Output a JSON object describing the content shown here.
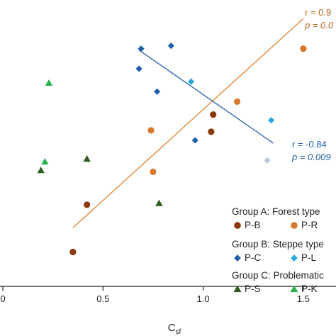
{
  "chart_data": {
    "type": "scatter",
    "xlabel": "C",
    "xlabel_sub": "sf",
    "xlim": [
      0.0,
      1.55
    ],
    "ylim": [
      0.0,
      1.0
    ],
    "x_ticks": [
      {
        "value": 0.0,
        "label": "0"
      },
      {
        "value": 0.5,
        "label": "0.5"
      },
      {
        "value": 1.0,
        "label": "1.0"
      },
      {
        "value": 1.5,
        "label": "1.5"
      }
    ],
    "grid": false,
    "legend": {
      "placement": "bottom-right",
      "groups": [
        {
          "title": "Group A: Forest type",
          "entries": [
            "P-B",
            "P-R"
          ]
        },
        {
          "title": "Group B: Steppe type",
          "entries": [
            "P-C",
            "P-L"
          ]
        },
        {
          "title": "Group C: Problematic",
          "entries": [
            "P-S",
            "P-K"
          ]
        }
      ]
    },
    "colors": {
      "P-B": "#8b3a0f",
      "P-R": "#d9772b",
      "P-C": "#1f5fa8",
      "P-L": "#29a9e0",
      "P-S": "#2e5c1e",
      "P-K": "#27b34a",
      "forest_fit": "#e08a3c",
      "steppe_fit": "#2d68b0",
      "forest_stat": "#b8661d",
      "steppe_stat": "#1f5fa8"
    },
    "annotations": [
      {
        "id": "forest",
        "lines": [
          "r = 0.9",
          "p = 0.0"
        ]
      },
      {
        "id": "steppe",
        "lines": [
          "r = -0.84",
          "p = 0.009"
        ]
      }
    ],
    "fit_lines": [
      {
        "id": "forest",
        "x": [
          0.35,
          1.5
        ],
        "y": [
          0.205,
          0.935
        ]
      },
      {
        "id": "steppe",
        "x": [
          0.68,
          1.35
        ],
        "y": [
          0.825,
          0.5
        ]
      }
    ],
    "series": [
      {
        "name": "P-B",
        "marker": "circle",
        "x": [
          0.35,
          0.42,
          1.04,
          1.05
        ],
        "y": [
          0.12,
          0.285,
          0.54,
          0.6
        ]
      },
      {
        "name": "P-R",
        "marker": "circle",
        "x": [
          0.74,
          0.75,
          1.17,
          1.5
        ],
        "y": [
          0.545,
          0.4,
          0.645,
          0.83
        ]
      },
      {
        "name": "P-C",
        "marker": "diamond",
        "x": [
          0.68,
          0.69,
          0.77,
          0.84,
          0.96
        ],
        "y": [
          0.76,
          0.83,
          0.68,
          0.84,
          0.51
        ]
      },
      {
        "name": "P-L",
        "marker": "diamond",
        "x": [
          0.94,
          1.34
        ],
        "y": [
          0.715,
          0.58
        ]
      },
      {
        "name": "P-S",
        "marker": "triangle",
        "x": [
          0.19,
          0.42,
          0.78
        ],
        "y": [
          0.405,
          0.445,
          0.29
        ]
      },
      {
        "name": "P-K",
        "marker": "triangle",
        "x": [
          0.21,
          0.23
        ],
        "y": [
          0.435,
          0.71
        ]
      }
    ],
    "faded_points": [
      {
        "marker": "diamond",
        "x": 1.32,
        "y": 0.44
      }
    ]
  }
}
